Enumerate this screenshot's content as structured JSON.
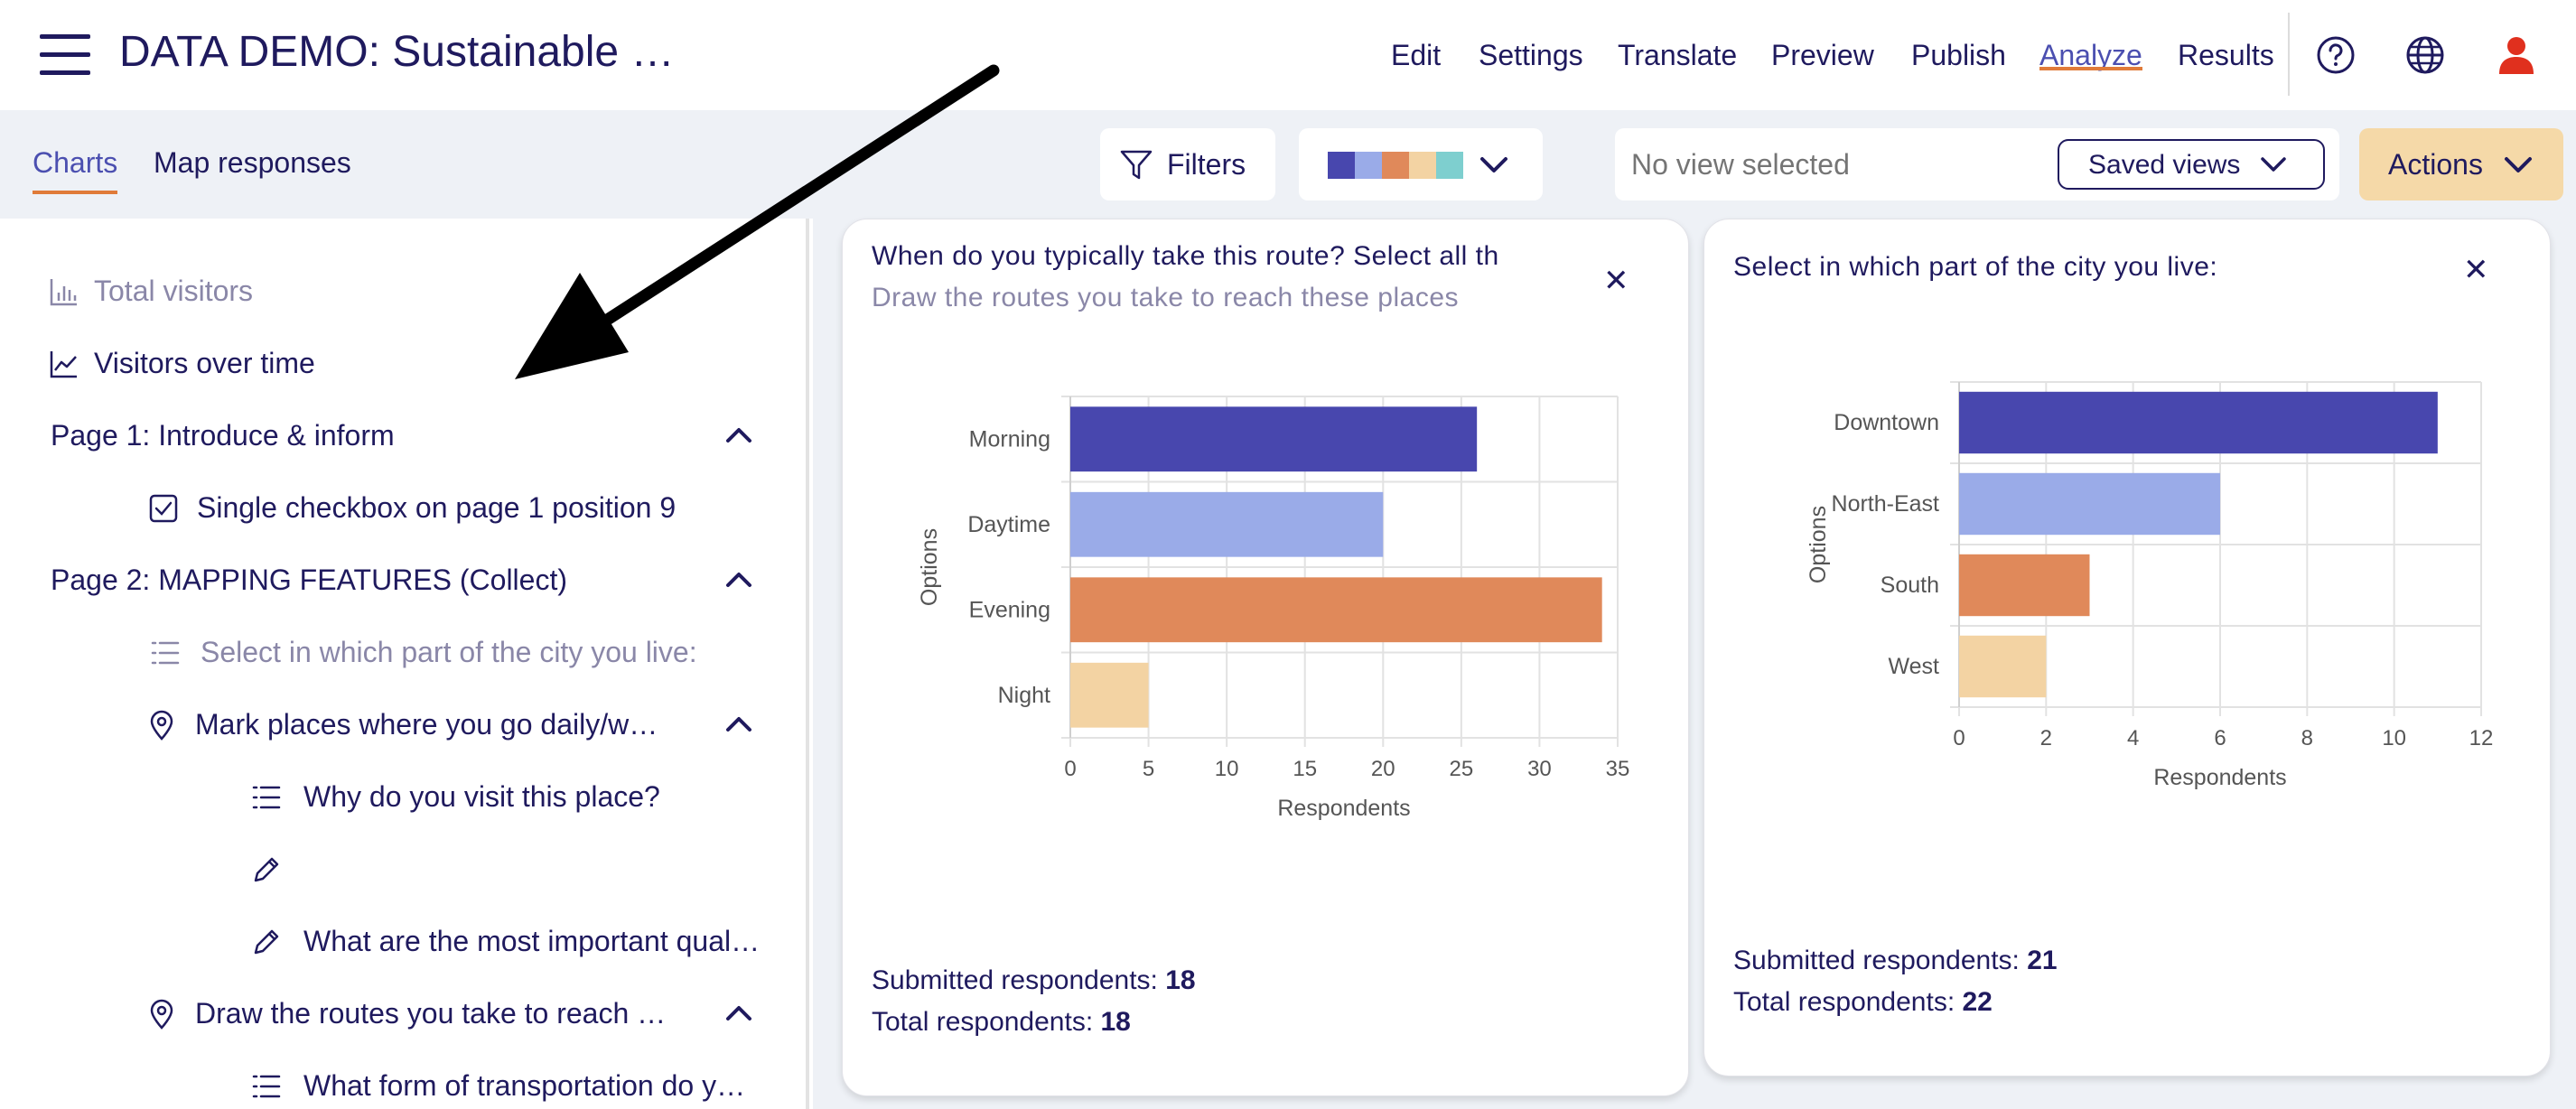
{
  "header": {
    "title": "DATA DEMO: Sustainable …",
    "nav": [
      "Edit",
      "Settings",
      "Translate",
      "Preview",
      "Publish",
      "Analyze",
      "Results"
    ],
    "active_nav": "Analyze"
  },
  "subbar": {
    "tabs": [
      "Charts",
      "Map responses"
    ],
    "active_tab": "Charts",
    "filters_label": "Filters",
    "palette_colors": [
      "#4847ae",
      "#9aabe8",
      "#e0895a",
      "#f3d3a3",
      "#7ecfcf"
    ],
    "view_placeholder": "No view selected",
    "saved_views_label": "Saved views",
    "actions_label": "Actions"
  },
  "sidebar": {
    "items": [
      {
        "label": "Total visitors",
        "icon": "bar-chart-icon"
      },
      {
        "label": "Visitors over time",
        "icon": "line-chart-icon"
      },
      {
        "label": "Page 1: Introduce & inform"
      },
      {
        "label": "Single checkbox on page 1 position 9",
        "icon": "checkbox-icon"
      },
      {
        "label": "Page 2: MAPPING FEATURES (Collect)"
      },
      {
        "label": "Select in which part of the city you live:",
        "icon": "list-icon"
      },
      {
        "label": "Mark places where you go daily/w…",
        "icon": "map-pin-icon"
      },
      {
        "label": "Why do you visit this place?",
        "icon": "list-icon"
      },
      {
        "label": "",
        "icon": "pencil-icon"
      },
      {
        "label": "What are the most important qual…",
        "icon": "pencil-icon"
      },
      {
        "label": "Draw the routes you take to reach …",
        "icon": "map-pin-icon"
      },
      {
        "label": "What form of transportation do y…",
        "icon": "list-icon"
      }
    ]
  },
  "cards": [
    {
      "title": "When do you typically take this route? Select all th",
      "subtitle": "Draw the routes you take to reach these places",
      "submitted_label": "Submitted respondents:",
      "submitted_value": "18",
      "total_label": "Total respondents:",
      "total_value": "18"
    },
    {
      "title": "Select in which part of the city you live:",
      "subtitle": "",
      "submitted_label": "Submitted respondents:",
      "submitted_value": "21",
      "total_label": "Total respondents:",
      "total_value": "22"
    }
  ],
  "chart_data": [
    {
      "type": "bar",
      "orientation": "horizontal",
      "categories": [
        "Morning",
        "Daytime",
        "Evening",
        "Night"
      ],
      "values": [
        26,
        20,
        34,
        5
      ],
      "colors": [
        "#4847ae",
        "#9aabe8",
        "#e0895a",
        "#f3d3a3"
      ],
      "xlabel": "Respondents",
      "ylabel": "Options",
      "xlim": [
        0,
        35
      ],
      "xticks": [
        0,
        5,
        10,
        15,
        20,
        25,
        30,
        35
      ],
      "grid": true
    },
    {
      "type": "bar",
      "orientation": "horizontal",
      "categories": [
        "Downtown",
        "North-East",
        "South",
        "West"
      ],
      "values": [
        11,
        6,
        3,
        2
      ],
      "colors": [
        "#4847ae",
        "#9aabe8",
        "#e0895a",
        "#f3d3a3"
      ],
      "xlabel": "Respondents",
      "ylabel": "Options",
      "xlim": [
        0,
        12
      ],
      "xticks": [
        0,
        2,
        4,
        6,
        8,
        10,
        12
      ],
      "grid": true
    }
  ]
}
